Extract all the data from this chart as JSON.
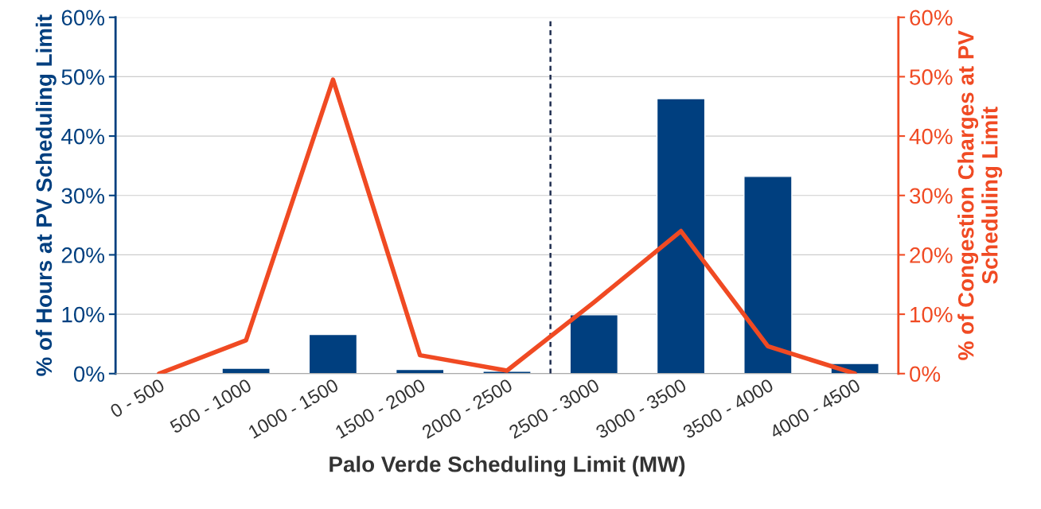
{
  "chart_data": {
    "type": "bar",
    "xlabel": "Palo Verde Scheduling Limit (MW)",
    "ylabel": "% of Hours at PV Scheduling Limit",
    "y2label": "% of Congestion Charges at PV Scheduling Limit",
    "categories": [
      "0 - 500",
      "500 - 1000",
      "1000 - 1500",
      "1500 - 2000",
      "2000 - 2500",
      "2500 - 3000",
      "3000 - 3500",
      "3500 - 4000",
      "4000 - 4500"
    ],
    "series": [
      {
        "color": "#003f7f",
        "values": [
          null,
          0.9,
          6.6,
          0.7,
          0.4,
          9.9,
          46.3,
          33.2,
          1.7
        ]
      },
      {
        "type": "line",
        "axis": "y2",
        "color": "#f04a23",
        "values": [
          0,
          5.6,
          49.5,
          3.1,
          0.5,
          12,
          24,
          4.6,
          0
        ]
      }
    ],
    "ylim": [
      0,
      60
    ],
    "yticks": [
      {
        "value": 0,
        "label": "0%"
      },
      {
        "value": 10,
        "label": "10%"
      },
      {
        "value": 20,
        "label": "20%"
      },
      {
        "value": 30,
        "label": "30%"
      },
      {
        "value": 40,
        "label": "40%"
      },
      {
        "value": 50,
        "label": "50%"
      },
      {
        "value": 60,
        "label": "60%"
      }
    ],
    "y2lim": [
      0,
      60
    ],
    "y2ticks": [
      {
        "value": 0,
        "label": "0%"
      },
      {
        "value": 10,
        "label": "10%"
      },
      {
        "value": 20,
        "label": "20%"
      },
      {
        "value": 30,
        "label": "30%"
      },
      {
        "value": 40,
        "label": "40%"
      },
      {
        "value": 50,
        "label": "50%"
      },
      {
        "value": 60,
        "label": "60%"
      }
    ],
    "grid": "y",
    "legend": false
  }
}
